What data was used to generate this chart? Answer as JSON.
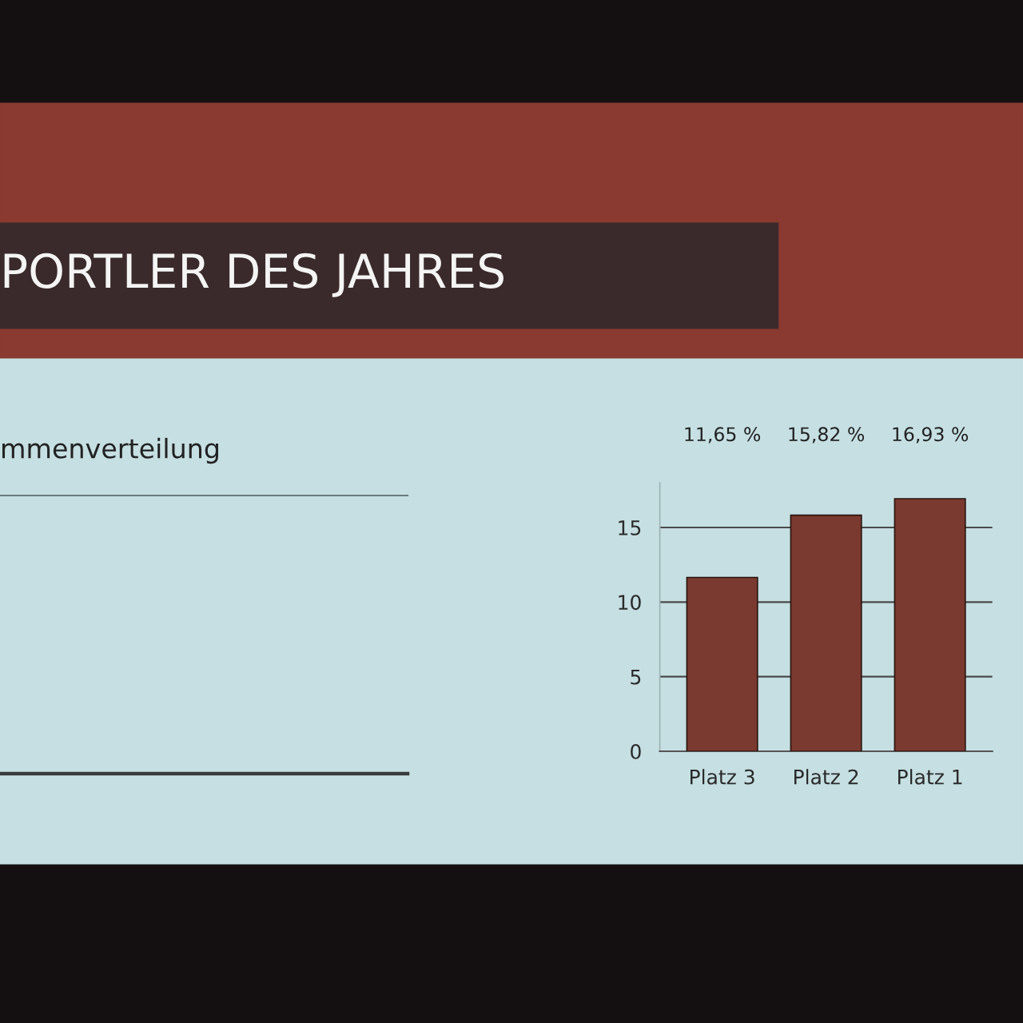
{
  "chart_data": {
    "type": "bar",
    "title": "PORTLER DES JAHRES",
    "subtitle": "mmenverteilung",
    "categories": [
      "Platz 3",
      "Platz 2",
      "Platz 1"
    ],
    "values": [
      11.65,
      15.82,
      16.93
    ],
    "value_labels": [
      "11,65 %",
      "15,82 %",
      "16,93 %"
    ],
    "color": "#7b3a2f",
    "ylim": [
      0,
      18
    ],
    "yticks": [
      0,
      5,
      10,
      15
    ],
    "grid": "y"
  }
}
